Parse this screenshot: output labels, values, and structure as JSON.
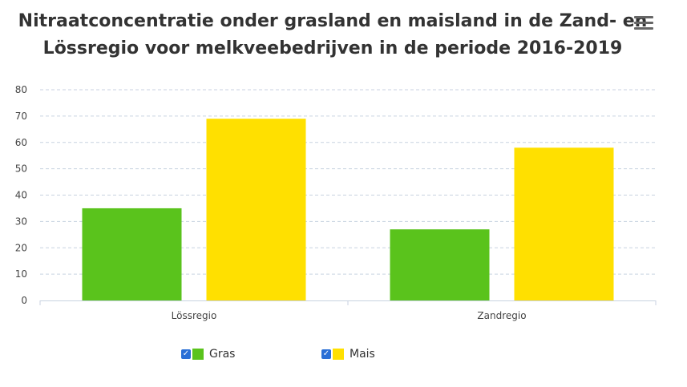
{
  "title_lines": [
    "Nitraatconcentratie onder grasland en maisland in de Zand- en",
    "Lössregio voor melkveebedrijven in de periode 2016-2019"
  ],
  "menu_icon": "hamburger-menu-icon",
  "chart_data": {
    "type": "bar",
    "categories": [
      "Lössregio",
      "Zandregio"
    ],
    "series": [
      {
        "name": "Gras",
        "values": [
          35,
          27
        ],
        "color": "#5ac31c"
      },
      {
        "name": "Mais",
        "values": [
          69,
          58
        ],
        "color": "#ffe000"
      }
    ],
    "ylim": [
      0,
      80
    ],
    "yticks": [
      0,
      10,
      20,
      30,
      40,
      50,
      60,
      70,
      80
    ],
    "grid": true,
    "legend_position": "bottom"
  },
  "legend": [
    {
      "label": "Gras",
      "checked": true,
      "color": "#5ac31c"
    },
    {
      "label": "Mais",
      "checked": true,
      "color": "#ffe000"
    }
  ]
}
